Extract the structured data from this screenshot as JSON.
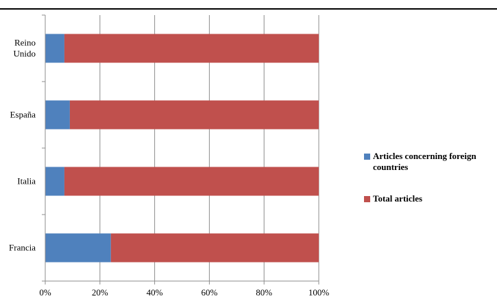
{
  "chart_data": {
    "type": "bar",
    "orientation": "horizontal",
    "stacked": "percent",
    "categories": [
      "Reino\nUnido",
      "España",
      "Italia",
      "Francia"
    ],
    "series": [
      {
        "name": "Articles concerning foreign countries",
        "color": "#4F81BD",
        "values": [
          7,
          9,
          7,
          24
        ]
      },
      {
        "name": "Total articles",
        "color": "#C0504D",
        "values": [
          93,
          91,
          93,
          76
        ]
      }
    ],
    "xticks": [
      "0%",
      "20%",
      "40%",
      "60%",
      "80%",
      "100%"
    ],
    "xlim": [
      0,
      100
    ],
    "grid": "vertical",
    "legend_position": "right",
    "title": "",
    "xlabel": "",
    "ylabel": ""
  },
  "legend": {
    "items": [
      {
        "label": "Articles concerning foreign countries",
        "color": "#4F81BD"
      },
      {
        "label": "Total articles",
        "color": "#C0504D"
      }
    ]
  }
}
